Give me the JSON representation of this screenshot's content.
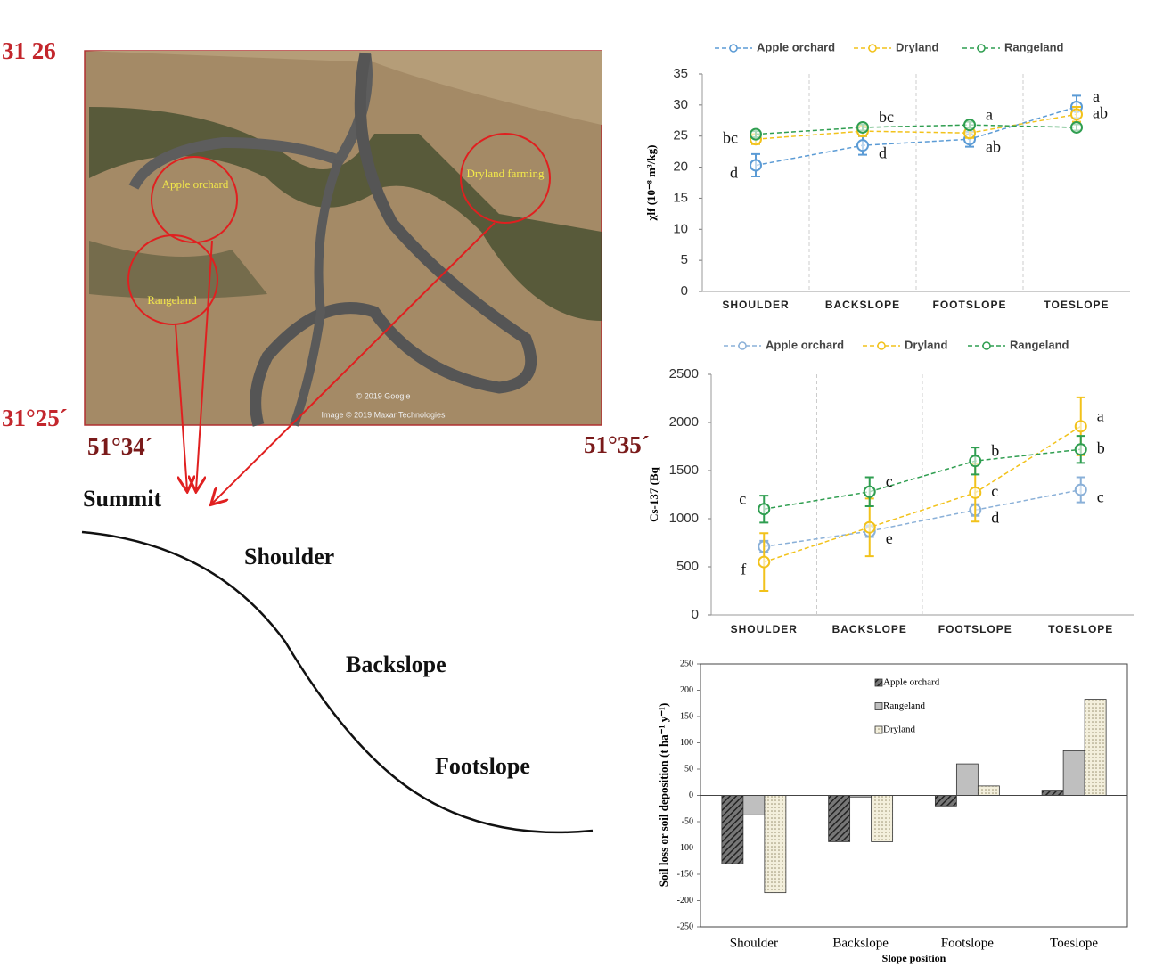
{
  "map": {
    "coordinates": [
      "31 26",
      "31°25´",
      "51°34´",
      "51°35´"
    ],
    "labels": [
      "Apple orchard",
      "Dryland farming",
      "Rangeland"
    ],
    "credits": [
      "© 2019 Google",
      "Image © 2019 Maxar Technologies"
    ]
  },
  "slope": {
    "labels": [
      "Summit",
      "Shoulder",
      "Backslope",
      "Footslope"
    ]
  },
  "chart_data": [
    {
      "type": "line",
      "y_label": "χlf (10⁻⁸ m³/kg)",
      "categories": [
        "SHOULDER",
        "BACKSLOPE",
        "FOOTSLOPE",
        "TOESLOPE"
      ],
      "ylim": [
        0,
        35
      ],
      "yticks": [
        0,
        5,
        10,
        15,
        20,
        25,
        30,
        35
      ],
      "series": [
        {
          "name": "Apple orchard",
          "color": "#5b9bd5",
          "values": [
            20.3,
            23.5,
            24.5,
            29.7
          ],
          "errors": [
            1.8,
            1.5,
            1.2,
            1.8
          ],
          "point_labels": [
            "d",
            "d",
            "ab",
            "a"
          ]
        },
        {
          "name": "Dryland",
          "color": "#f2c21b",
          "values": [
            24.5,
            25.8,
            25.5,
            28.5
          ],
          "errors": [
            0.8,
            0.8,
            0.8,
            1.2
          ],
          "point_labels": [
            "bc",
            null,
            null,
            "ab"
          ]
        },
        {
          "name": "Rangeland",
          "color": "#2f9e50",
          "values": [
            25.3,
            26.4,
            26.8,
            26.4
          ],
          "errors": [
            0.5,
            0.5,
            0.5,
            0.5
          ],
          "point_labels": [
            null,
            "bc",
            "a",
            null
          ]
        }
      ]
    },
    {
      "type": "line",
      "y_label": "Cs-137 (Bq",
      "categories": [
        "SHOULDER",
        "BACKSLOPE",
        "FOOTSLOPE",
        "TOESLOPE"
      ],
      "ylim": [
        0,
        2500
      ],
      "yticks": [
        0,
        500,
        1000,
        1500,
        2000,
        2500
      ],
      "series": [
        {
          "name": "Apple orchard",
          "color": "#8ab0d8",
          "values": [
            710,
            870,
            1090,
            1300
          ],
          "errors": [
            60,
            60,
            60,
            130
          ],
          "point_labels": [
            null,
            "e",
            "d",
            "c"
          ]
        },
        {
          "name": "Dryland",
          "color": "#f2c21b",
          "values": [
            550,
            910,
            1270,
            1960
          ],
          "errors": [
            300,
            300,
            300,
            300
          ],
          "point_labels": [
            "f",
            null,
            "c",
            "a"
          ]
        },
        {
          "name": "Rangeland",
          "color": "#2f9e50",
          "values": [
            1100,
            1280,
            1600,
            1720
          ],
          "errors": [
            140,
            150,
            140,
            140
          ],
          "point_labels": [
            "c",
            "c",
            "b",
            "b"
          ]
        }
      ]
    },
    {
      "type": "bar",
      "y_label": "Soil loss or soil deposition (t ha⁻¹ y⁻¹)",
      "x_label": "Slope position",
      "categories": [
        "Shoulder",
        "Backslope",
        "Footslope",
        "Toeslope"
      ],
      "ylim": [
        -250,
        250
      ],
      "yticks": [
        -250,
        -200,
        -150,
        -100,
        -50,
        0,
        50,
        100,
        150,
        200,
        250
      ],
      "series": [
        {
          "name": "Apple orchard",
          "color": "#555555",
          "pattern": "hatch",
          "values": [
            -130,
            -88,
            -20,
            10
          ]
        },
        {
          "name": "Rangeland",
          "color": "#bfbfbf",
          "values": [
            -37,
            -3,
            60,
            85
          ]
        },
        {
          "name": "Dryland",
          "color": "#f3efdc",
          "pattern": "dots",
          "values": [
            -185,
            -88,
            18,
            183
          ]
        }
      ]
    }
  ]
}
